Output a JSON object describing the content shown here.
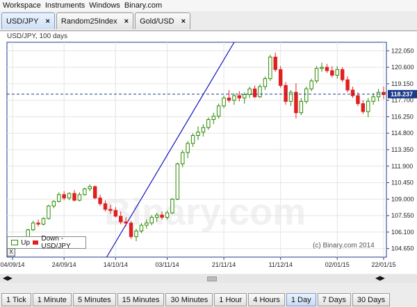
{
  "menu": [
    "Workspace",
    "Instruments",
    "Windows",
    "Binary.com"
  ],
  "tabs": [
    {
      "label": "USD/JPY",
      "active": true
    },
    {
      "label": "Random25Index",
      "active": false
    },
    {
      "label": "Gold/USD",
      "active": false
    }
  ],
  "chart_title": "USD/JPY, 100 days",
  "watermark": "Binary.com",
  "legend": {
    "up": "Up",
    "down": "Down - USD/JPY"
  },
  "copyright": "(c) Binary.com 2014",
  "current_price": "118.237",
  "timeframes": [
    {
      "label": "1 Tick",
      "active": false
    },
    {
      "label": "1 Minute",
      "active": false
    },
    {
      "label": "5 Minutes",
      "active": false
    },
    {
      "label": "15 Minutes",
      "active": false
    },
    {
      "label": "30 Minutes",
      "active": false
    },
    {
      "label": "1 Hour",
      "active": false
    },
    {
      "label": "4 Hours",
      "active": false
    },
    {
      "label": "1 Day",
      "active": true
    },
    {
      "label": "7 Days",
      "active": false
    },
    {
      "label": "30 Days",
      "active": false
    }
  ],
  "colors": {
    "up": "#2a8a00",
    "down": "#e02020",
    "trendline": "#1010c0",
    "axis": "#1a3a8a"
  },
  "chart_data": {
    "type": "candlestick",
    "y_ticks": [
      "122.050",
      "120.600",
      "119.150",
      "117.700",
      "116.250",
      "114.800",
      "113.350",
      "111.900",
      "110.450",
      "109.000",
      "107.550",
      "106.100",
      "104.650"
    ],
    "x_ticks": [
      "04/09/14",
      "24/09/14",
      "14/10/14",
      "03/11/14",
      "21/11/14",
      "11/12/14",
      "02/01/15",
      "22/01/15"
    ],
    "ylim": [
      103.9,
      122.8
    ],
    "candles": [
      [
        104.7,
        105.4,
        104.6,
        105.3
      ],
      [
        105.3,
        105.6,
        105.0,
        105.1
      ],
      [
        105.1,
        105.7,
        105.0,
        105.6
      ],
      [
        105.6,
        106.4,
        105.5,
        106.3
      ],
      [
        106.3,
        107.1,
        106.2,
        106.9
      ],
      [
        106.9,
        107.2,
        106.6,
        106.8
      ],
      [
        106.8,
        107.4,
        106.7,
        107.3
      ],
      [
        107.3,
        108.5,
        107.2,
        108.4
      ],
      [
        108.4,
        108.9,
        108.2,
        108.8
      ],
      [
        108.8,
        109.6,
        108.7,
        109.4
      ],
      [
        109.4,
        109.7,
        108.9,
        109.1
      ],
      [
        109.1,
        109.6,
        108.9,
        109.5
      ],
      [
        109.5,
        109.8,
        108.8,
        108.9
      ],
      [
        108.9,
        109.6,
        108.8,
        109.4
      ],
      [
        109.4,
        110.0,
        109.3,
        109.9
      ],
      [
        109.9,
        110.3,
        109.7,
        110.1
      ],
      [
        110.1,
        110.2,
        109.0,
        109.1
      ],
      [
        109.1,
        109.4,
        108.4,
        108.6
      ],
      [
        108.6,
        108.9,
        107.9,
        108.1
      ],
      [
        108.1,
        108.5,
        107.7,
        108.0
      ],
      [
        108.0,
        108.3,
        107.4,
        107.5
      ],
      [
        107.5,
        107.9,
        106.8,
        107.0
      ],
      [
        107.0,
        107.4,
        106.6,
        106.9
      ],
      [
        106.9,
        107.1,
        105.5,
        105.7
      ],
      [
        105.7,
        106.4,
        105.3,
        106.2
      ],
      [
        106.2,
        106.9,
        106.0,
        106.7
      ],
      [
        106.7,
        107.2,
        106.4,
        106.9
      ],
      [
        106.9,
        107.6,
        106.7,
        107.4
      ],
      [
        107.4,
        107.8,
        107.0,
        107.6
      ],
      [
        107.6,
        107.9,
        107.2,
        107.4
      ],
      [
        107.4,
        108.0,
        107.2,
        107.8
      ],
      [
        107.8,
        109.1,
        107.7,
        109.0
      ],
      [
        109.0,
        112.2,
        108.9,
        112.1
      ],
      [
        112.1,
        113.3,
        111.8,
        113.1
      ],
      [
        113.1,
        114.1,
        112.6,
        113.9
      ],
      [
        113.9,
        114.8,
        113.6,
        114.6
      ],
      [
        114.6,
        115.4,
        114.2,
        114.9
      ],
      [
        114.9,
        115.6,
        114.5,
        115.3
      ],
      [
        115.3,
        116.2,
        115.1,
        116.0
      ],
      [
        116.0,
        116.6,
        115.6,
        116.3
      ],
      [
        116.3,
        117.4,
        116.1,
        117.2
      ],
      [
        117.2,
        118.1,
        117.0,
        117.9
      ],
      [
        117.9,
        118.6,
        117.5,
        117.7
      ],
      [
        117.7,
        118.3,
        117.3,
        118.1
      ],
      [
        118.1,
        118.5,
        117.6,
        117.9
      ],
      [
        117.9,
        118.4,
        117.4,
        118.2
      ],
      [
        118.2,
        118.9,
        117.9,
        118.7
      ],
      [
        118.7,
        119.0,
        117.9,
        118.0
      ],
      [
        118.0,
        119.1,
        117.9,
        118.9
      ],
      [
        118.9,
        119.8,
        118.6,
        119.6
      ],
      [
        119.6,
        121.7,
        119.4,
        121.5
      ],
      [
        121.5,
        121.9,
        120.2,
        120.4
      ],
      [
        120.4,
        120.7,
        118.8,
        119.0
      ],
      [
        119.0,
        119.3,
        117.3,
        117.6
      ],
      [
        117.6,
        118.6,
        117.2,
        118.4
      ],
      [
        118.4,
        119.2,
        116.1,
        116.6
      ],
      [
        116.6,
        117.9,
        116.4,
        117.6
      ],
      [
        117.6,
        118.9,
        117.4,
        118.7
      ],
      [
        118.7,
        119.6,
        118.5,
        119.4
      ],
      [
        119.4,
        120.7,
        119.2,
        120.5
      ],
      [
        120.5,
        121.0,
        120.2,
        120.6
      ],
      [
        120.6,
        120.9,
        120.1,
        120.3
      ],
      [
        120.3,
        120.7,
        119.7,
        119.9
      ],
      [
        119.9,
        120.7,
        119.6,
        120.4
      ],
      [
        120.4,
        120.6,
        119.3,
        119.5
      ],
      [
        119.5,
        119.8,
        118.4,
        118.6
      ],
      [
        118.6,
        118.9,
        117.9,
        118.1
      ],
      [
        118.1,
        118.4,
        117.2,
        117.4
      ],
      [
        117.4,
        117.7,
        116.5,
        116.7
      ],
      [
        116.7,
        117.9,
        116.2,
        117.6
      ],
      [
        117.6,
        118.3,
        117.3,
        118.0
      ],
      [
        118.0,
        118.7,
        117.6,
        118.4
      ],
      [
        118.4,
        118.9,
        117.8,
        118.2
      ]
    ]
  }
}
